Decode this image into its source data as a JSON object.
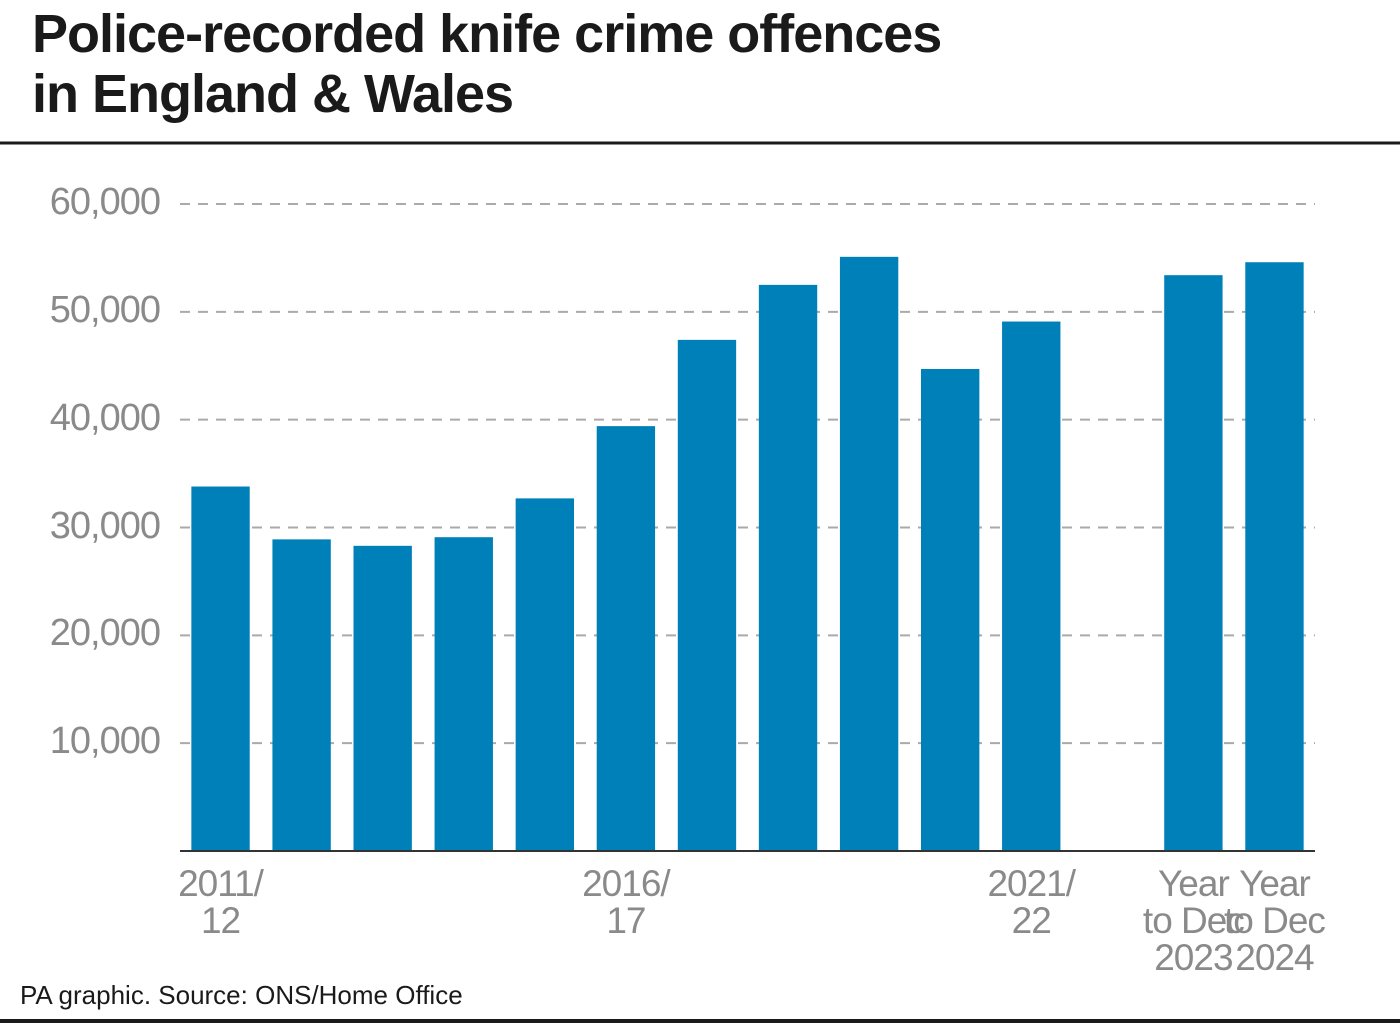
{
  "chart_data": {
    "type": "bar",
    "title": "Police-recorded knife crime offences\nin England & Wales",
    "source": "PA graphic. Source: ONS/Home Office",
    "categories": [
      "2011/\n12",
      null,
      null,
      null,
      null,
      "2016/\n17",
      null,
      null,
      null,
      null,
      "2021/\n22",
      null,
      "Year\nto Dec\n2023",
      "Year\nto Dec\n2024"
    ],
    "values": [
      33800,
      28900,
      28300,
      29100,
      32700,
      39400,
      47400,
      52500,
      55100,
      44700,
      49100,
      null,
      53400,
      54600
    ],
    "color": "#0080b9",
    "ylim": [
      0,
      60000
    ],
    "yticks": [
      {
        "value": 10000,
        "label": "10,000"
      },
      {
        "value": 20000,
        "label": "20,000"
      },
      {
        "value": 30000,
        "label": "30,000"
      },
      {
        "value": 40000,
        "label": "40,000"
      },
      {
        "value": 50000,
        "label": "50,000"
      },
      {
        "value": 60000,
        "label": "60,000"
      }
    ],
    "grid": true
  }
}
